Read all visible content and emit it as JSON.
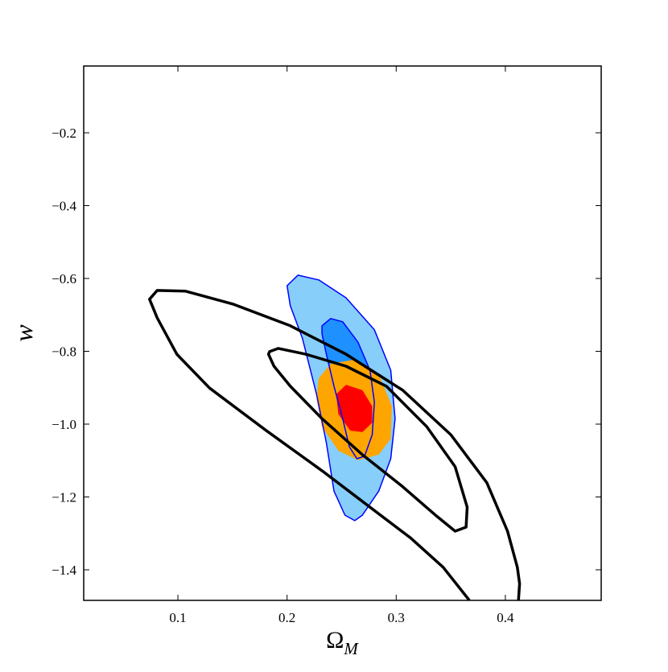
{
  "chart_data": {
    "type": "contour",
    "xlabel": "Ω",
    "xlabel_sub": "M",
    "ylabel": "w",
    "xlim": [
      0.0137,
      0.4878
    ],
    "ylim": [
      -1.484,
      -0.0166
    ],
    "xticks": [
      0.1,
      0.2,
      0.3,
      0.4
    ],
    "yticks": [
      {
        "value": -0.2,
        "label": "−0.2"
      },
      {
        "value": -0.4,
        "label": "−0.4"
      },
      {
        "value": -0.6,
        "label": "−0.6"
      },
      {
        "value": -0.8,
        "label": "−0.8"
      },
      {
        "value": -1.0,
        "label": "−1.0"
      },
      {
        "value": -1.2,
        "label": "−1.2"
      },
      {
        "value": -1.4,
        "label": "−1.4"
      }
    ],
    "series": [
      {
        "fill": "#87cefa",
        "color": "#0000ff",
        "closed": true,
        "x": [
          0.2,
          0.21,
          0.229,
          0.254,
          0.28,
          0.295,
          0.299,
          0.295,
          0.284,
          0.269,
          0.262,
          0.253,
          0.243,
          0.236,
          0.227,
          0.214,
          0.203
        ],
        "y": [
          -0.62,
          -0.591,
          -0.604,
          -0.653,
          -0.741,
          -0.852,
          -0.985,
          -1.095,
          -1.184,
          -1.25,
          -1.265,
          -1.25,
          -1.184,
          -1.051,
          -0.918,
          -0.764,
          -0.675
        ]
      },
      {
        "fill": "#1e90ff",
        "color": "#0000ff",
        "closed": true,
        "x": [
          0.232,
          0.24,
          0.251,
          0.265,
          0.276,
          0.28,
          0.278,
          0.271,
          0.264,
          0.257,
          0.251,
          0.243,
          0.236,
          0.232
        ],
        "y": [
          -0.73,
          -0.71,
          -0.719,
          -0.775,
          -0.852,
          -0.94,
          -1.029,
          -1.088,
          -1.095,
          -1.062,
          -0.985,
          -0.896,
          -0.808,
          -0.752
        ]
      },
      {
        "fill": "#ffa500",
        "color": null,
        "closed": true,
        "x": [
          0.229,
          0.24,
          0.262,
          0.284,
          0.296,
          0.295,
          0.284,
          0.265,
          0.247,
          0.232,
          0.227
        ],
        "y": [
          -0.874,
          -0.834,
          -0.823,
          -0.863,
          -0.951,
          -1.04,
          -1.084,
          -1.099,
          -1.073,
          -1.007,
          -0.929
        ]
      },
      {
        "fill": "#ff0000",
        "color": null,
        "closed": true,
        "x": [
          0.245,
          0.254,
          0.269,
          0.278,
          0.278,
          0.269,
          0.258,
          0.247
        ],
        "y": [
          -0.918,
          -0.892,
          -0.907,
          -0.951,
          -0.996,
          -1.022,
          -1.018,
          -0.973
        ]
      },
      {
        "fill": null,
        "color": "#000000",
        "closed": false,
        "x": [
          0.367,
          0.343,
          0.313,
          0.276,
          0.232,
          0.181,
          0.129,
          0.099,
          0.081,
          0.074,
          0.081,
          0.107,
          0.151,
          0.203,
          0.254,
          0.306,
          0.35,
          0.383,
          0.402,
          0.411,
          0.413,
          0.412
        ],
        "y": [
          -1.484,
          -1.393,
          -1.312,
          -1.228,
          -1.128,
          -1.018,
          -0.901,
          -0.808,
          -0.708,
          -0.657,
          -0.633,
          -0.635,
          -0.671,
          -0.73,
          -0.808,
          -0.907,
          -1.029,
          -1.161,
          -1.294,
          -1.393,
          -1.438,
          -1.484
        ]
      },
      {
        "fill": null,
        "color": "#000000",
        "closed": true,
        "x": [
          0.184,
          0.192,
          0.217,
          0.254,
          0.291,
          0.328,
          0.354,
          0.365,
          0.364,
          0.354,
          0.336,
          0.306,
          0.269,
          0.232,
          0.203,
          0.188,
          0.183
        ],
        "y": [
          -0.801,
          -0.792,
          -0.808,
          -0.841,
          -0.896,
          -1.007,
          -1.117,
          -1.228,
          -1.283,
          -1.294,
          -1.25,
          -1.172,
          -1.084,
          -0.985,
          -0.896,
          -0.841,
          -0.808
        ]
      }
    ]
  }
}
